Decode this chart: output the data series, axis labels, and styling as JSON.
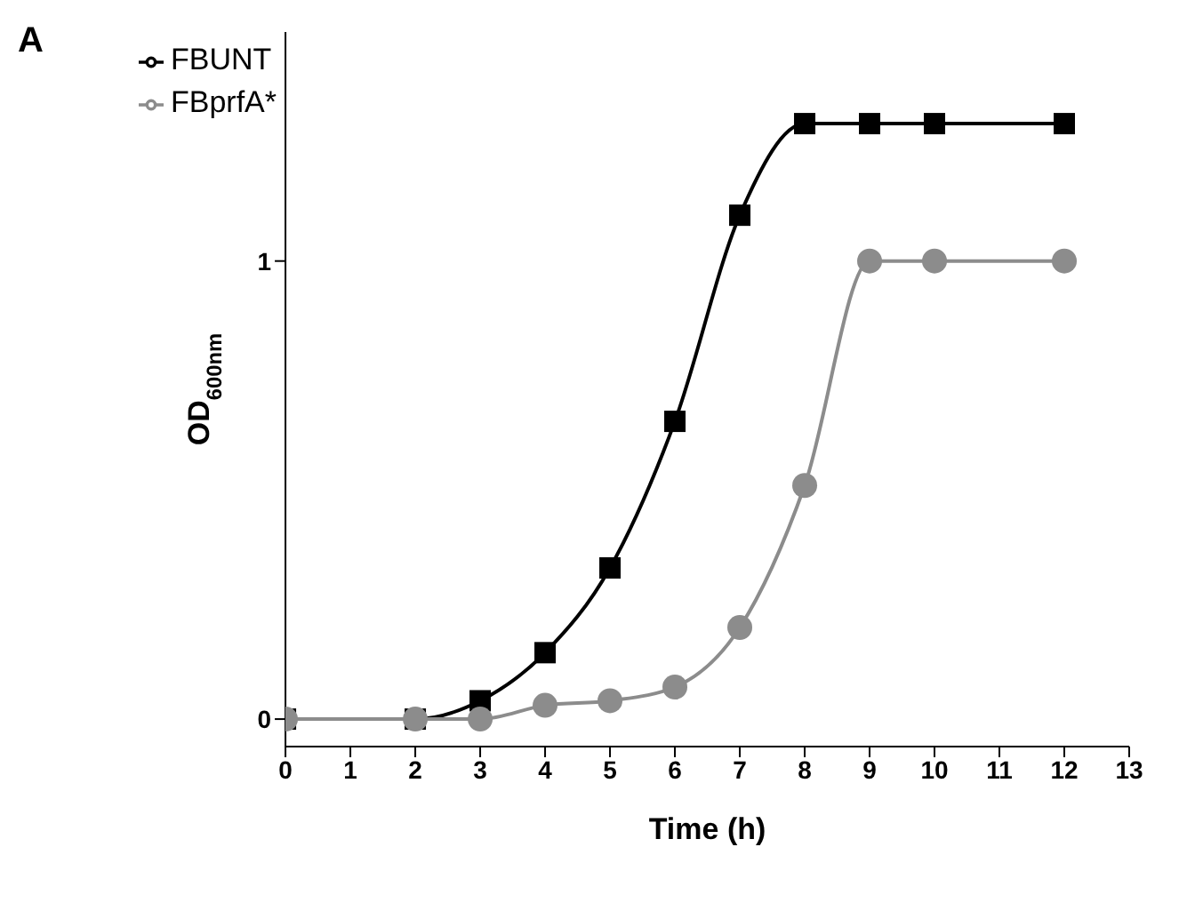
{
  "chart_data": {
    "type": "line",
    "title": "A",
    "xlabel": "Time (h)",
    "ylabel": "OD$_{600nm}$",
    "x": [
      0,
      2,
      3,
      4,
      5,
      6,
      7,
      8,
      9,
      10,
      12
    ],
    "series": [
      {
        "name": "FBUNT",
        "color": "#000000",
        "marker": "square",
        "values": [
          0,
          0,
          0.04,
          0.145,
          0.33,
          0.65,
          1.1,
          1.3,
          1.3,
          1.3,
          1.3
        ]
      },
      {
        "name": "FBprfA*",
        "color": "#8c8c8c",
        "marker": "circle",
        "values": [
          0,
          0,
          0,
          0.03,
          0.04,
          0.07,
          0.2,
          0.51,
          1.0,
          1.0,
          1.0
        ]
      }
    ],
    "xlim": [
      0,
      13
    ],
    "xticks": [
      0,
      1,
      2,
      3,
      4,
      5,
      6,
      7,
      8,
      9,
      10,
      11,
      12,
      13
    ],
    "ylim": [
      -0.06,
      1.5
    ],
    "yticks": [
      0,
      1
    ],
    "grid": false,
    "legend": "top left",
    "line_style": "solid"
  }
}
